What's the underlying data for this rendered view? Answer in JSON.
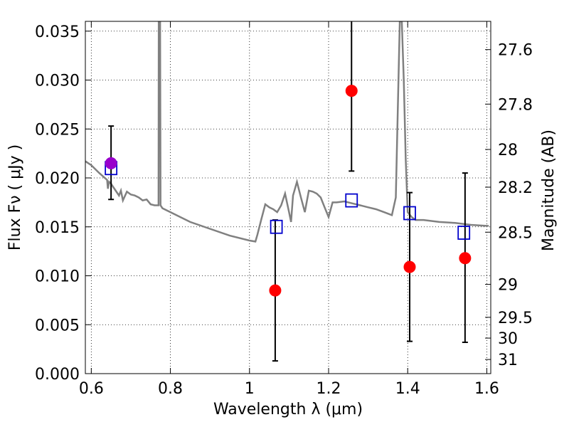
{
  "chart_data": {
    "type": "scatter",
    "xlabel": "Wavelength  λ (μm)",
    "ylabel": "Flux  Fν  ( μJy )",
    "y2label": "Magnitude (AB)",
    "xlim": [
      0.585,
      1.61
    ],
    "ylim": [
      0.0,
      0.036
    ],
    "grid": true,
    "x_ticks": [
      0.6,
      0.8,
      1.0,
      1.2,
      1.4,
      1.6
    ],
    "x_tick_labels": [
      "0.6",
      "0.8",
      "1",
      "1.2",
      "1.4",
      "1.6"
    ],
    "y_ticks": [
      0.0,
      0.005,
      0.01,
      0.015,
      0.02,
      0.025,
      0.03,
      0.035
    ],
    "y_tick_labels": [
      "0.000",
      "0.005",
      "0.010",
      "0.015",
      "0.020",
      "0.025",
      "0.030",
      "0.035"
    ],
    "y2_ticks": [
      27.6,
      27.8,
      28,
      28.2,
      28.5,
      29,
      29.5,
      30,
      31
    ],
    "y2_tick_labels": [
      "27.6",
      "27.8",
      "28",
      "28.2",
      "28.5",
      "29",
      "29.5",
      "30",
      "31"
    ],
    "colors": {
      "spectrum": "#808080",
      "observed": "#ff0000",
      "model": "#0000cc",
      "errorbar": "#000000",
      "overlap": "#9900cc"
    },
    "series": [
      {
        "kind": "line",
        "x": [
          0.585,
          0.6,
          0.62,
          0.64,
          0.642,
          0.645,
          0.65,
          0.66,
          0.67,
          0.675,
          0.68,
          0.69,
          0.7,
          0.71,
          0.72,
          0.73,
          0.74,
          0.75,
          0.76,
          0.77,
          0.7705,
          0.774,
          0.775,
          0.78,
          0.8,
          0.85,
          0.9,
          0.95,
          1.0,
          1.015,
          1.02,
          1.03,
          1.04,
          1.05,
          1.06,
          1.07,
          1.08,
          1.09,
          1.1,
          1.105,
          1.11,
          1.12,
          1.13,
          1.14,
          1.15,
          1.16,
          1.17,
          1.18,
          1.19,
          1.2,
          1.21,
          1.22,
          1.24,
          1.26,
          1.28,
          1.3,
          1.32,
          1.34,
          1.36,
          1.37,
          1.38,
          1.385,
          1.39,
          1.395,
          1.4,
          1.41,
          1.42,
          1.44,
          1.48,
          1.52,
          1.56,
          1.6,
          1.605
        ],
        "y": [
          0.0217,
          0.0213,
          0.0205,
          0.0198,
          0.0189,
          0.0196,
          0.0194,
          0.0188,
          0.0182,
          0.0187,
          0.0177,
          0.0186,
          0.0183,
          0.0182,
          0.018,
          0.0177,
          0.0178,
          0.0173,
          0.0172,
          0.0172,
          0.036,
          0.036,
          0.0172,
          0.0169,
          0.0165,
          0.0155,
          0.0148,
          0.0141,
          0.0136,
          0.0135,
          0.0142,
          0.0158,
          0.0173,
          0.017,
          0.0168,
          0.0165,
          0.0172,
          0.0184,
          0.0165,
          0.0155,
          0.0182,
          0.0196,
          0.018,
          0.0165,
          0.0187,
          0.0186,
          0.0184,
          0.018,
          0.017,
          0.016,
          0.0175,
          0.0175,
          0.0176,
          0.0174,
          0.0172,
          0.017,
          0.0168,
          0.0165,
          0.0162,
          0.018,
          0.036,
          0.036,
          0.03,
          0.022,
          0.0165,
          0.016,
          0.0157,
          0.0157,
          0.0155,
          0.0154,
          0.0152,
          0.0151,
          0.0151
        ]
      },
      {
        "kind": "points",
        "x": [
          0.65,
          1.065,
          1.258,
          1.405,
          1.545
        ],
        "y": [
          0.0215,
          0.0085,
          0.0289,
          0.0109,
          0.0118
        ],
        "yerr_low": [
          0.0178,
          0.0013,
          0.0207,
          0.0033,
          0.0032
        ],
        "yerr_high": [
          0.0253,
          0.0157,
          0.036,
          0.0185,
          0.0205
        ]
      },
      {
        "kind": "model_points",
        "x": [
          0.65,
          1.068,
          1.258,
          1.405,
          1.542
        ],
        "y": [
          0.021,
          0.015,
          0.0177,
          0.0164,
          0.0144
        ]
      }
    ]
  }
}
